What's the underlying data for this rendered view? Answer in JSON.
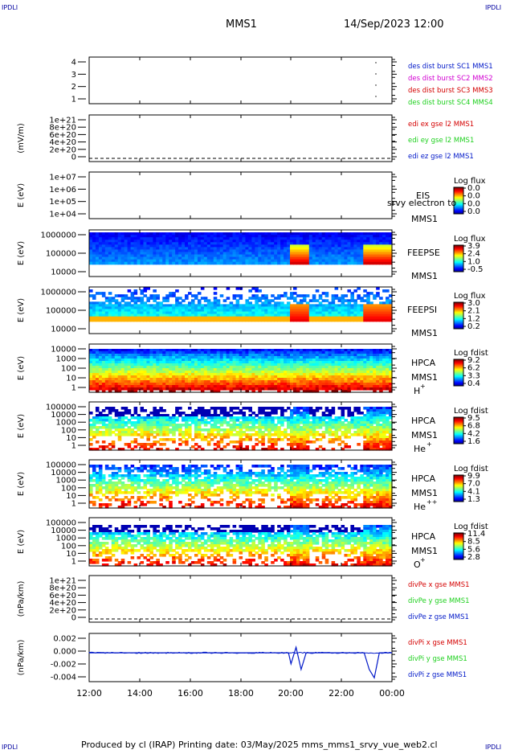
{
  "header": {
    "corner_left_top": "IPDLI",
    "corner_right_top": "IPDLI",
    "corner_left_bottom": "IPDLI",
    "corner_right_bottom": "IPDLI",
    "spacecraft": "MMS1",
    "datetime": "14/Sep/2023 12:00"
  },
  "footer": {
    "text": "Produced by cl (IRAP)   Printing date: 03/May/2025   mms_mms1_srvy_vue_web2.cl"
  },
  "colors": {
    "red": "#d40000",
    "green": "#1ed01e",
    "blue": "#0018c8",
    "magenta": "#d200d2",
    "dark_blue": "#0000a0"
  },
  "time_axis": {
    "ticks": [
      "12:00",
      "14:00",
      "16:00",
      "18:00",
      "20:00",
      "22:00",
      "00:00"
    ]
  },
  "panels": [
    {
      "id": "burst",
      "ylabel": "",
      "yticks": [
        "4",
        "3",
        "2",
        "1"
      ],
      "legend": [
        {
          "text": "des dist burst SC1 MMS1",
          "color": "#0018c8"
        },
        {
          "text": "des dist burst SC2 MMS2",
          "color": "#d200d2"
        },
        {
          "text": "des dist burst SC3 MMS3",
          "color": "#d40000"
        },
        {
          "text": "des dist burst SC4 MMS4",
          "color": "#1ed01e"
        }
      ]
    },
    {
      "id": "edi",
      "ylabel": "(mV/m)",
      "yticks": [
        "1e+21",
        "8e+20",
        "6e+20",
        "4e+20",
        "2e+20",
        "0"
      ],
      "legend": [
        {
          "text": "edi ex gse l2 MMS1",
          "color": "#d40000"
        },
        {
          "text": "edi ey gse l2 MMS1",
          "color": "#1ed01e"
        },
        {
          "text": "edi ez gse l2 MMS1",
          "color": "#0018c8"
        }
      ]
    },
    {
      "id": "eis",
      "ylabel": "E (eV)",
      "yticks": [
        "1e+07",
        "1e+06",
        "1e+05",
        "1e+04"
      ],
      "side_label": [
        "EIS",
        "MMS1"
      ],
      "overlay": "srvy electron to",
      "colorbar": {
        "title": "Log flux",
        "ticks": [
          "0.0",
          "0.0",
          "0.0",
          "0.0"
        ]
      }
    },
    {
      "id": "feepse",
      "ylabel": "E (eV)",
      "yticks": [
        "1000000",
        "100000",
        "10000"
      ],
      "side_label": [
        "FEEPSE",
        "MMS1"
      ],
      "colorbar": {
        "title": "Log flux",
        "ticks": [
          "3.9",
          "2.4",
          "1.0",
          "-0.5"
        ]
      }
    },
    {
      "id": "feepsi",
      "ylabel": "E (eV)",
      "yticks": [
        "1000000",
        "100000",
        "10000"
      ],
      "side_label": [
        "FEEPSI",
        "MMS1"
      ],
      "colorbar": {
        "title": "Log flux",
        "ticks": [
          "3.0",
          "2.1",
          "1.2",
          "0.2"
        ]
      }
    },
    {
      "id": "hpca_h",
      "ylabel": "E (eV)",
      "yticks": [
        "10000",
        "1000",
        "100",
        "10",
        "1"
      ],
      "side_label": [
        "HPCA",
        "MMS1",
        "H",
        "+"
      ],
      "colorbar": {
        "title": "Log fdist",
        "ticks": [
          "9.2",
          "6.2",
          "3.3",
          "0.4"
        ]
      }
    },
    {
      "id": "hpca_he",
      "ylabel": "E (eV)",
      "yticks": [
        "100000",
        "10000",
        "1000",
        "100",
        "10",
        "1"
      ],
      "side_label": [
        "HPCA",
        "MMS1",
        "He",
        "+"
      ],
      "colorbar": {
        "title": "Log fdist",
        "ticks": [
          "9.5",
          "6.8",
          "4.2",
          "1.6"
        ]
      }
    },
    {
      "id": "hpca_he2",
      "ylabel": "E (eV)",
      "yticks": [
        "100000",
        "10000",
        "1000",
        "100",
        "10",
        "1"
      ],
      "side_label": [
        "HPCA",
        "MMS1",
        "He",
        "++"
      ],
      "colorbar": {
        "title": "Log fdist",
        "ticks": [
          "9.9",
          "7.0",
          "4.1",
          "1.3"
        ]
      }
    },
    {
      "id": "hpca_o",
      "ylabel": "E (eV)",
      "yticks": [
        "100000",
        "10000",
        "1000",
        "100",
        "10",
        "1"
      ],
      "side_label": [
        "HPCA",
        "MMS1",
        "O",
        "+"
      ],
      "colorbar": {
        "title": "Log fdist",
        "ticks": [
          "11.4",
          "8.5",
          "5.6",
          "2.8"
        ]
      }
    },
    {
      "id": "divpe",
      "ylabel": "(nPa/km)",
      "yticks": [
        "1e+21",
        "8e+20",
        "6e+20",
        "4e+20",
        "2e+20",
        "0"
      ],
      "legend": [
        {
          "text": "divPe x gse MMS1",
          "color": "#d40000"
        },
        {
          "text": "divPe y gse MMS1",
          "color": "#1ed01e"
        },
        {
          "text": "divPe z gse MMS1",
          "color": "#0018c8"
        }
      ]
    },
    {
      "id": "divpi",
      "ylabel": "(nPa/km)",
      "yticks": [
        "0.002",
        "0.000",
        "-0.002",
        "-0.004"
      ],
      "legend": [
        {
          "text": "divPi x gse MMS1",
          "color": "#d40000"
        },
        {
          "text": "divPi y gse MMS1",
          "color": "#1ed01e"
        },
        {
          "text": "divPi z gse MMS1",
          "color": "#0018c8"
        }
      ]
    }
  ],
  "chart_data": {
    "type": "heatmap",
    "title": "MMS1  14/Sep/2023 12:00",
    "x_range": [
      "12:00",
      "00:00"
    ],
    "x_ticks": [
      "12:00",
      "14:00",
      "16:00",
      "18:00",
      "20:00",
      "22:00",
      "00:00"
    ],
    "burst_intervals_hours": [
      22.9
    ],
    "divpi_z_gse": {
      "x_hours": [
        12.0,
        19.9,
        20.0,
        20.2,
        20.4,
        20.6,
        22.9,
        23.1,
        23.3,
        23.5,
        24.0
      ],
      "y": [
        0.0,
        0.0,
        -0.002,
        0.001,
        -0.003,
        0.0,
        0.0,
        -0.003,
        -0.0045,
        0.0,
        0.0
      ],
      "ylim": [
        -0.0052,
        0.0035
      ]
    }
  }
}
